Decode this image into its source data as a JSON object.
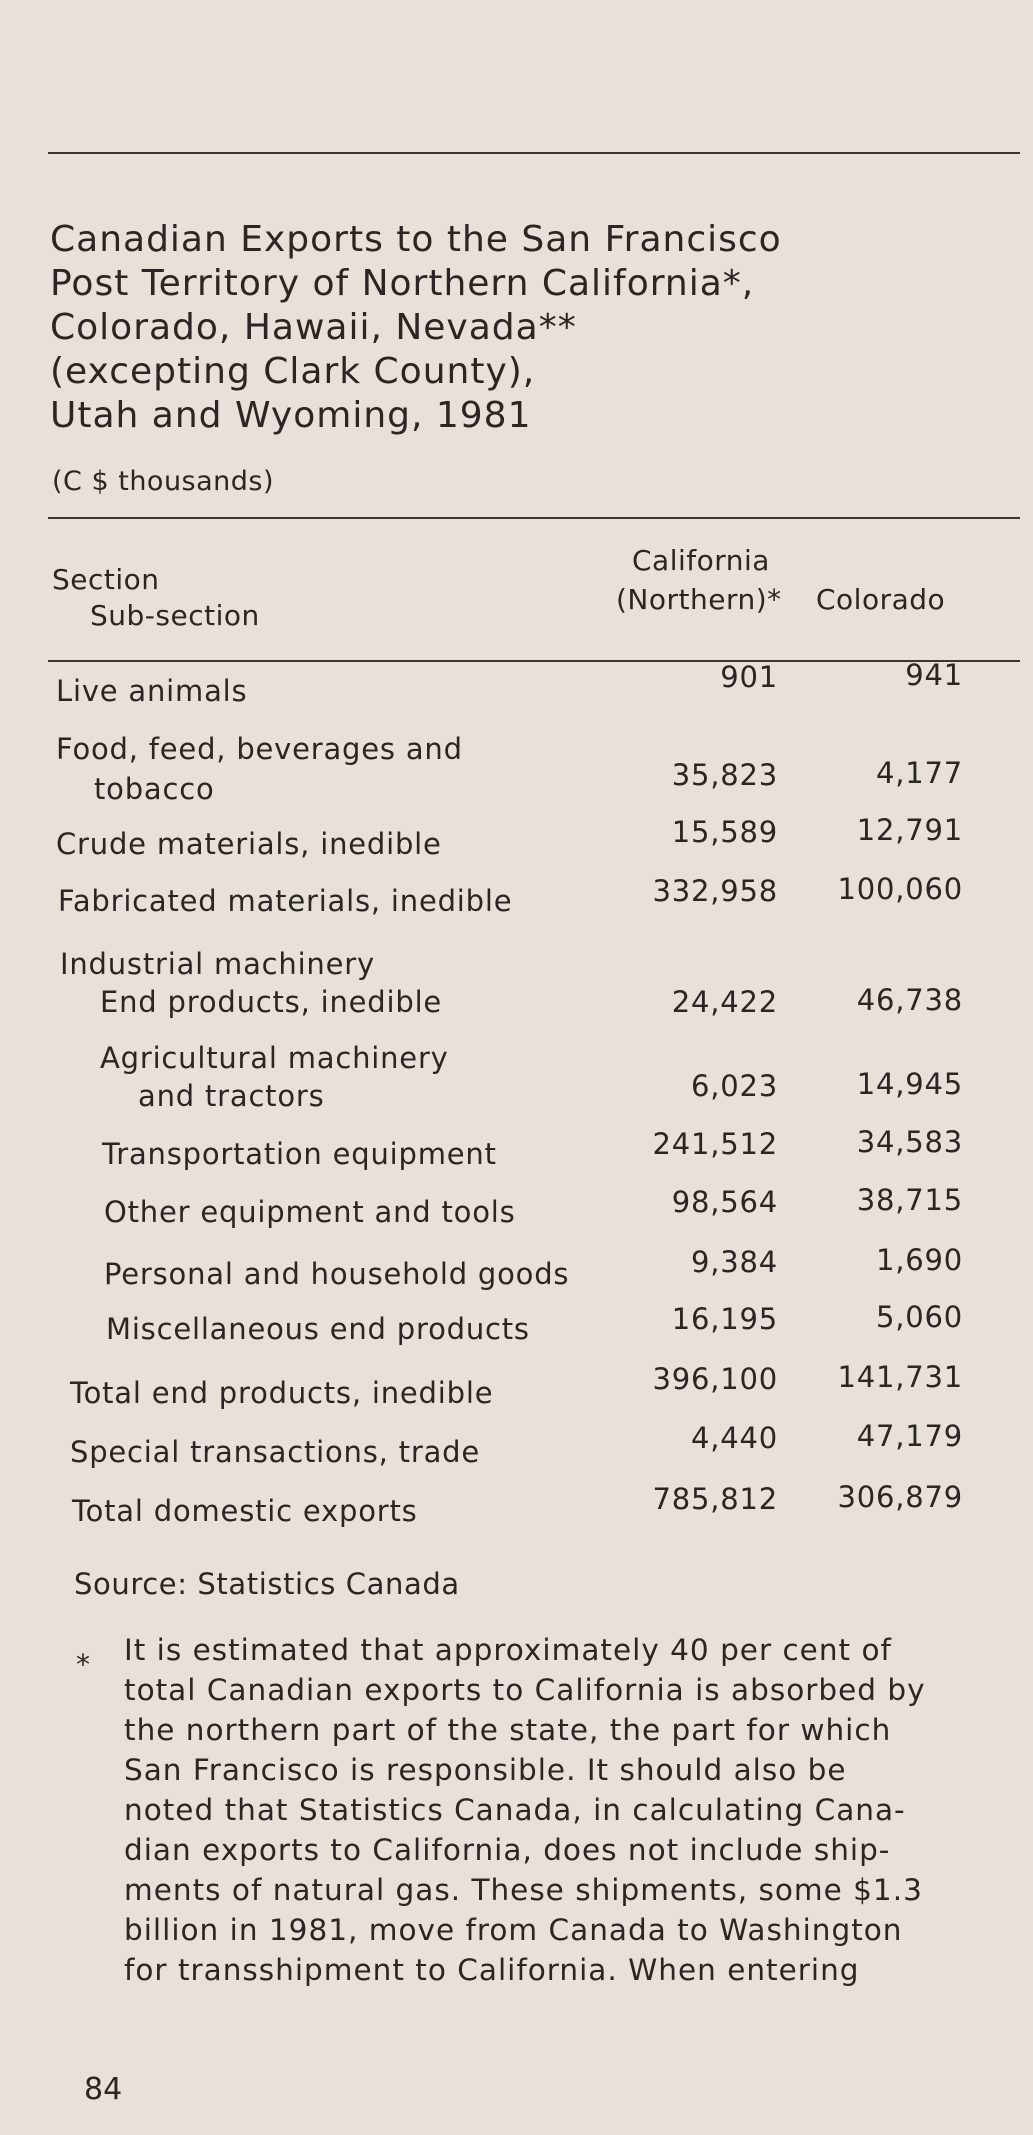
{
  "title_lines": [
    "Canadian Exports to the San Francisco",
    "Post Territory of Northern California*,",
    "Colorado, Hawaii, Nevada**",
    "(excepting Clark County),",
    "Utah and Wyoming, 1981"
  ],
  "subtitle": "(C $ thousands)",
  "header": {
    "section": "Section",
    "subsection": "Sub-section",
    "col1_line1": "California",
    "col1_line2": "(Northern)*",
    "col2": "Colorado"
  },
  "rows": [
    {
      "label": [
        "Live animals"
      ],
      "california": "901",
      "colorado": "941"
    },
    {
      "label": [
        "Food, feed, beverages and",
        "tobacco"
      ],
      "california": "35,823",
      "colorado": "4,177"
    },
    {
      "label": [
        "Crude materials, inedible"
      ],
      "california": "15,589",
      "colorado": "12,791"
    },
    {
      "label": [
        "Fabricated materials, inedible"
      ],
      "california": "332,958",
      "colorado": "100,060"
    },
    {
      "label": [
        "Industrial machinery",
        "End products, inedible"
      ],
      "california": "24,422",
      "colorado": "46,738"
    },
    {
      "label": [
        "Agricultural machinery",
        "and tractors"
      ],
      "california": "6,023",
      "colorado": "14,945"
    },
    {
      "label": [
        "Transportation equipment"
      ],
      "california": "241,512",
      "colorado": "34,583"
    },
    {
      "label": [
        "Other equipment and tools"
      ],
      "california": "98,564",
      "colorado": "38,715"
    },
    {
      "label": [
        "Personal and household goods"
      ],
      "california": "9,384",
      "colorado": "1,690"
    },
    {
      "label": [
        "Miscellaneous end products"
      ],
      "california": "16,195",
      "colorado": "5,060"
    },
    {
      "label": [
        "Total end products, inedible"
      ],
      "california": "396,100",
      "colorado": "141,731"
    },
    {
      "label": [
        "Special transactions, trade"
      ],
      "california": "4,440",
      "colorado": "47,179"
    },
    {
      "label": [
        "Total domestic exports"
      ],
      "california": "785,812",
      "colorado": "306,879"
    }
  ],
  "source": "Source: Statistics Canada",
  "footnote_marker": "*",
  "footnote_lines": [
    "It is estimated that approximately 40 per cent of",
    "total Canadian exports to California is absorbed by",
    "the northern part of the state, the part for which",
    "San Francisco is responsible. It should also be",
    "noted that Statistics Canada, in calculating Cana-",
    "dian exports to California, does not include ship-",
    "ments of natural gas. These shipments, some $1.3",
    "billion in 1981, move from Canada to Washington",
    "for transshipment to California. When entering"
  ],
  "page_number": "84"
}
